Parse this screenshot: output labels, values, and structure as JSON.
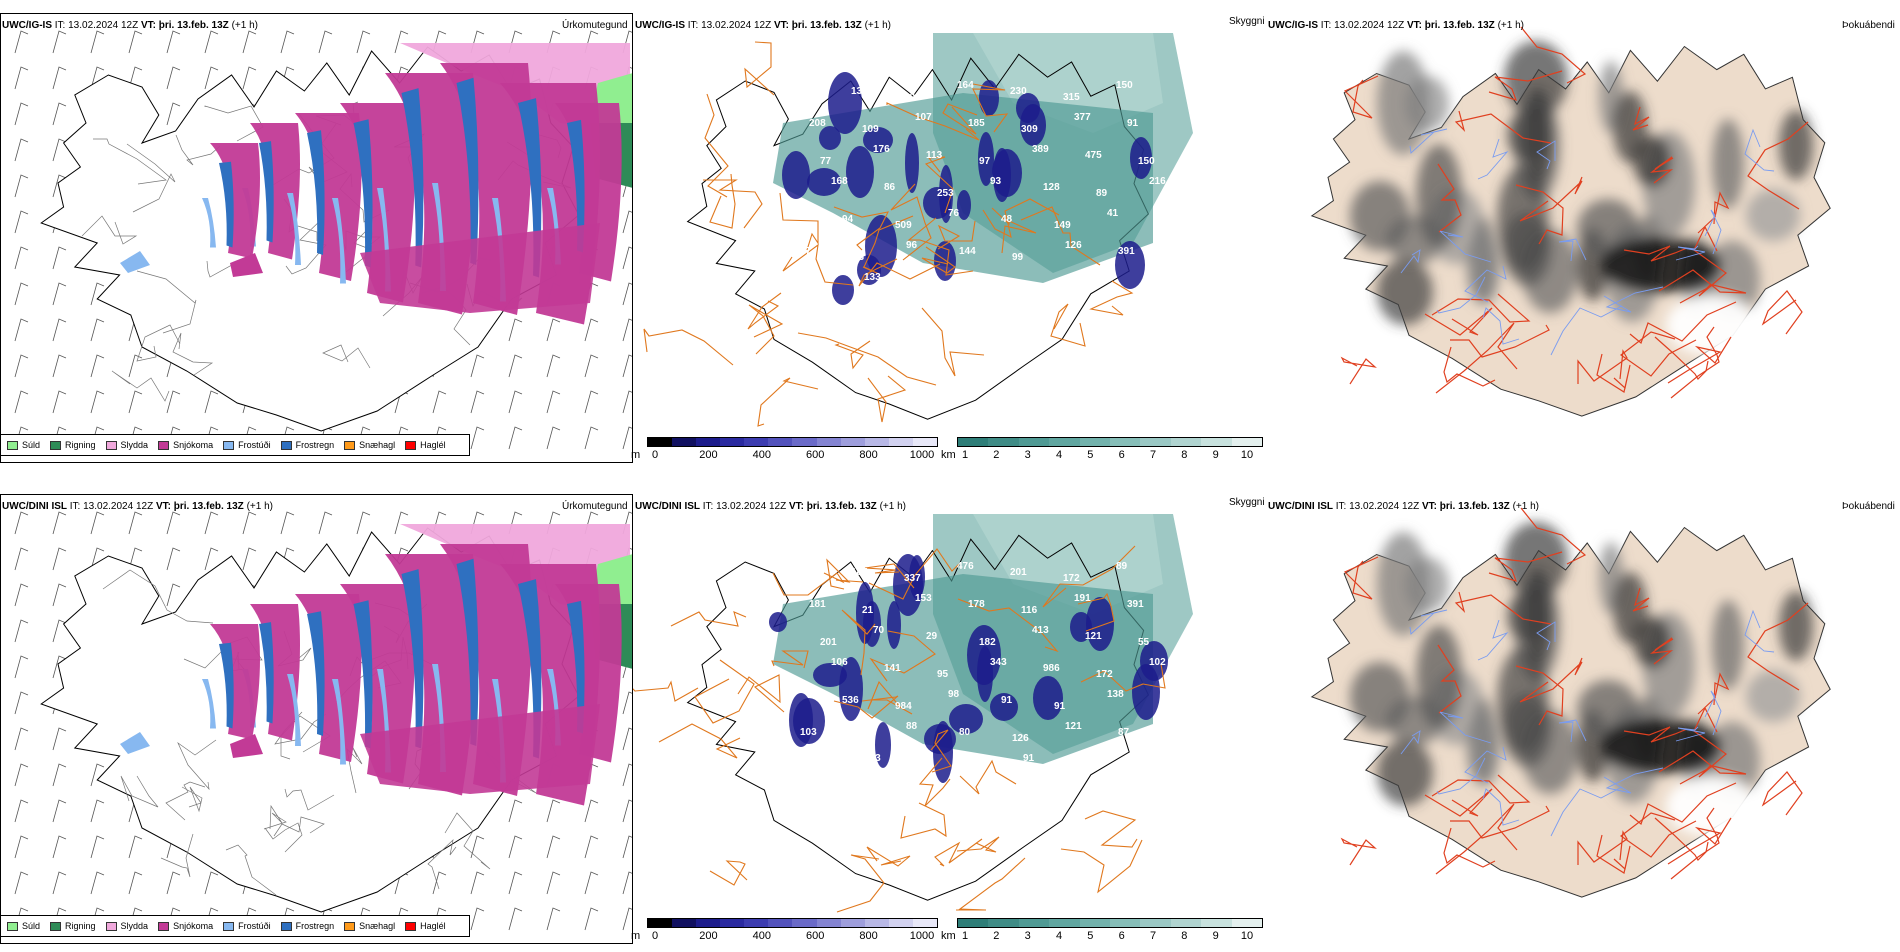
{
  "rows": [
    {
      "model": "UWC/IG-IS",
      "it_label": "IT:",
      "it_value": "13.02.2024 12Z",
      "vt_label": "VT:",
      "vt_value": "þri. 13.feb. 13Z",
      "lead": "(+1 h)"
    },
    {
      "model": "UWC/DINI ISL",
      "it_label": "IT:",
      "it_value": "13.02.2024 12Z",
      "vt_label": "VT:",
      "vt_value": "þri. 13.feb. 13Z",
      "lead": "(+1 h)"
    }
  ],
  "panel_titles": {
    "precip": "Úrkomutegund",
    "visibility": "Skyggni",
    "fog": "Þokuábendi"
  },
  "precip_legend": [
    {
      "label": "Súld",
      "color": "#90ee90"
    },
    {
      "label": "Rigning",
      "color": "#2e8b57"
    },
    {
      "label": "Slydda",
      "color": "#f0a8dc"
    },
    {
      "label": "Snjókoma",
      "color": "#c23a96"
    },
    {
      "label": "Frostúði",
      "color": "#87b8f0"
    },
    {
      "label": "Frostregn",
      "color": "#2f70c0"
    },
    {
      "label": "Snæhagl",
      "color": "#ff9a1a"
    },
    {
      "label": "Haglél",
      "color": "#ff0000"
    }
  ],
  "colorbar_m": {
    "unit": "m",
    "ticks": [
      "0",
      "200",
      "400",
      "600",
      "800",
      "1000"
    ],
    "colors": [
      "#000000",
      "#101060",
      "#1c1c8c",
      "#2a2aa0",
      "#3c3cb0",
      "#5252bc",
      "#6a6ac8",
      "#8484d2",
      "#9e9edc",
      "#b8b8e6",
      "#d2d2f0",
      "#e8e8f8"
    ]
  },
  "colorbar_km": {
    "unit": "km",
    "ticks": [
      "1",
      "2",
      "3",
      "4",
      "5",
      "6",
      "7",
      "8",
      "9",
      "10"
    ],
    "colors": [
      "#2e7e78",
      "#3f8c86",
      "#4f9a94",
      "#60a6a0",
      "#72b2ac",
      "#86beb8",
      "#9ac8c4",
      "#b0d4d0",
      "#c8e2de",
      "#e4f0ee"
    ]
  },
  "fog_legend": [
    {
      "value": "0",
      "color": "#000000"
    },
    {
      "value": "60",
      "color": "#ffffff"
    }
  ],
  "vis_labels": {
    "row0": [
      "88",
      "136",
      "302",
      "164",
      "230",
      "315",
      "150",
      "208",
      "109",
      "107",
      "185",
      "309",
      "377",
      "91",
      "77",
      "176",
      "113",
      "97",
      "389",
      "475",
      "150",
      "168",
      "86",
      "253",
      "93",
      "128",
      "89",
      "216",
      "94",
      "509",
      "76",
      "48",
      "149",
      "41",
      "67",
      "63",
      "96",
      "144",
      "99",
      "126",
      "391",
      "121",
      "133",
      "77"
    ],
    "row1": [
      "121",
      "185",
      "337",
      "476",
      "201",
      "172",
      "89",
      "181",
      "21",
      "153",
      "178",
      "116",
      "191",
      "391",
      "201",
      "70",
      "29",
      "182",
      "413",
      "121",
      "55",
      "106",
      "141",
      "95",
      "343",
      "986",
      "172",
      "102",
      "536",
      "984",
      "98",
      "91",
      "91",
      "138",
      "103",
      "289",
      "88",
      "80",
      "126",
      "121",
      "87",
      "98",
      "103",
      "91",
      "75",
      "91"
    ]
  }
}
